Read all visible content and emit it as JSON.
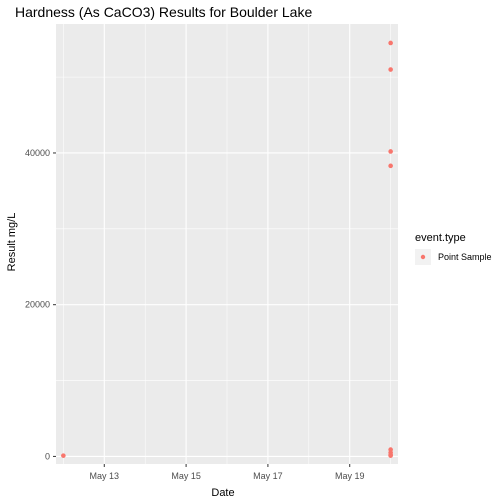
{
  "chart_data": {
    "type": "scatter",
    "title": "Hardness (As CaCO3) Results for Boulder Lake",
    "xlabel": "Date",
    "ylabel": "Result mg/L",
    "x_ticks": [
      "May 13",
      "May 15",
      "May 17",
      "May 19"
    ],
    "x_tick_dates": [
      "May 13",
      "May 15",
      "May 17",
      "May 19"
    ],
    "y_ticks": [
      "0",
      "20000",
      "40000"
    ],
    "y_tick_values": [
      0,
      20000,
      40000
    ],
    "xlim": [
      "May 12",
      "May 20"
    ],
    "ylim": [
      -1000,
      57000
    ],
    "grid": true,
    "legend_position": "right",
    "legend_title": "event.type",
    "series": [
      {
        "name": "Point Sample",
        "color": "#f8766d",
        "points": [
          {
            "x": "May 12",
            "y": 100
          },
          {
            "x": "May 20",
            "y": 54500
          },
          {
            "x": "May 20",
            "y": 51000
          },
          {
            "x": "May 20",
            "y": 40200
          },
          {
            "x": "May 20",
            "y": 38300
          },
          {
            "x": "May 20",
            "y": 900
          },
          {
            "x": "May 20",
            "y": 500
          },
          {
            "x": "May 20",
            "y": 200
          },
          {
            "x": "May 20",
            "y": 100
          }
        ]
      }
    ],
    "panel_color": "#ebebeb",
    "grid_color": "#ffffff"
  }
}
